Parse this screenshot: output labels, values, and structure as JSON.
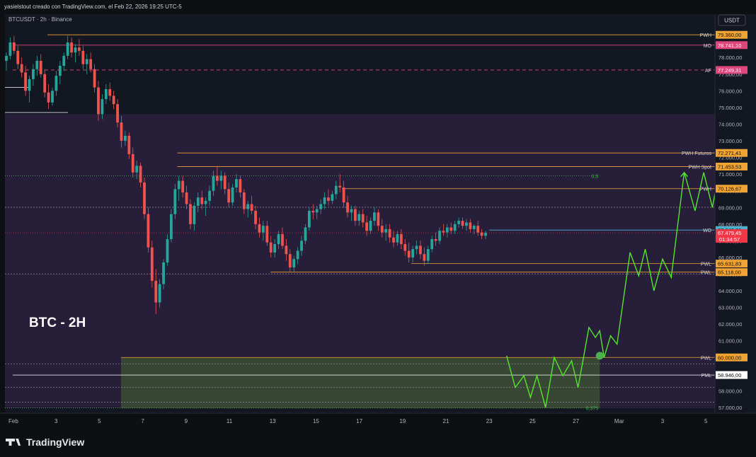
{
  "header": {
    "text": "yasielstout creado con TradingView.com, el Feb 22, 2026 19:25 UTC-5"
  },
  "footer": {
    "brand": "TradingView",
    "logo_icon": "tradingview-logo-icon"
  },
  "chart_data": {
    "type": "candlestick",
    "symbol_label": "BTCUSDT · 2h · Binance",
    "currency_button": "USDT",
    "annotation": "BTC - 2H",
    "ylim": [
      56700,
      80600
    ],
    "y_ticks": [
      {
        "value": 78000,
        "label": "78.000,00"
      },
      {
        "value": 77000,
        "label": "77.000,00"
      },
      {
        "value": 76000,
        "label": "76.000,00"
      },
      {
        "value": 75000,
        "label": "75.000,00"
      },
      {
        "value": 74000,
        "label": "74.000,00"
      },
      {
        "value": 73000,
        "label": "73.000,00"
      },
      {
        "value": 72000,
        "label": "72.000,00"
      },
      {
        "value": 71000,
        "label": "71.000,00"
      },
      {
        "value": 70000,
        "label": "70.000,00"
      },
      {
        "value": 69000,
        "label": "69.000,00"
      },
      {
        "value": 68000,
        "label": "68.000,00"
      },
      {
        "value": 67000,
        "label": "67.000,00"
      },
      {
        "value": 66000,
        "label": "66.000,00"
      },
      {
        "value": 65000,
        "label": "65.000,00"
      },
      {
        "value": 64000,
        "label": "64.000,00"
      },
      {
        "value": 63000,
        "label": "63.000,00"
      },
      {
        "value": 62000,
        "label": "62.000,00"
      },
      {
        "value": 61000,
        "label": "61.000,00"
      },
      {
        "value": 60000,
        "label": "60.000,00"
      },
      {
        "value": 59000,
        "label": "59.000,00"
      },
      {
        "value": 58000,
        "label": "58.000,00"
      },
      {
        "value": 57000,
        "label": "57.000,00"
      }
    ],
    "x_ticks": [
      {
        "day": 1,
        "label": "Feb"
      },
      {
        "day": 3,
        "label": "3"
      },
      {
        "day": 5,
        "label": "5"
      },
      {
        "day": 7,
        "label": "7"
      },
      {
        "day": 9,
        "label": "9"
      },
      {
        "day": 11,
        "label": "11"
      },
      {
        "day": 13,
        "label": "13"
      },
      {
        "day": 15,
        "label": "15"
      },
      {
        "day": 17,
        "label": "17"
      },
      {
        "day": 19,
        "label": "19"
      },
      {
        "day": 21,
        "label": "21"
      },
      {
        "day": 23,
        "label": "23"
      },
      {
        "day": 25,
        "label": "25"
      },
      {
        "day": 27,
        "label": "27"
      },
      {
        "day": 29,
        "label": "Mar"
      },
      {
        "day": 31,
        "label": "3"
      },
      {
        "day": 33,
        "label": "5"
      }
    ],
    "levels": [
      {
        "name": "PWH",
        "value": 79360,
        "label": "79.360,00",
        "color": "#f0a233",
        "style": "solid",
        "from_day": 2.6
      },
      {
        "name": "MO",
        "value": 78741.1,
        "label": "78.741,10",
        "color": "#e0457b",
        "style": "solid",
        "from_day": 1
      },
      {
        "name": "AF",
        "value": 77249.31,
        "label": "77.249,31",
        "color": "#e0457b",
        "style": "dashed",
        "from_day": 1
      },
      {
        "name": "PWH Futuros",
        "value": 72271.41,
        "label": "72.271,41",
        "color": "#f0a233",
        "style": "solid",
        "from_day": 8.6
      },
      {
        "name": "PWH Spot",
        "value": 71453.53,
        "label": "71.453,53",
        "color": "#f0a233",
        "style": "solid",
        "from_day": 8.6
      },
      {
        "name": "PWH",
        "value": 70126.67,
        "label": "70.126,67",
        "color": "#f0a233",
        "style": "solid",
        "from_day": 16.2
      },
      {
        "name": "WO",
        "value": 67643.39,
        "label": "67.643,39",
        "color": "#4fb0cc",
        "style": "solid",
        "from_day": 23
      },
      {
        "name": "PWL",
        "value": 65631.83,
        "label": "65.631,83",
        "color": "#f0a233",
        "style": "solid",
        "from_day": 19.4
      },
      {
        "name": "PWL",
        "value": 65118,
        "label": "65.118,00",
        "color": "#f0a233",
        "style": "solid",
        "from_day": 12.9
      },
      {
        "name": "PWL",
        "value": 60000,
        "label": "60.000,00",
        "color": "#f0a233",
        "style": "solid",
        "from_day": 6
      },
      {
        "name": "PML",
        "value": 58946,
        "label": "58.946,00",
        "color": "#ffffff",
        "style": "solid",
        "from_day": 1
      }
    ],
    "current_price": {
      "value": 67479.45,
      "label": "67.479,45",
      "countdown": "01:34:57",
      "color": "#f23645"
    },
    "fib_levels": [
      {
        "label": "0,5",
        "value": 70905
      },
      {
        "label": "0,375",
        "value": 56980
      }
    ],
    "dotted_levels": [
      69010,
      65010,
      59600,
      58200,
      57320
    ],
    "zones": [
      {
        "name": "range",
        "from": 56950,
        "to": 74600,
        "color": "#2a1f3d"
      },
      {
        "name": "demand",
        "from": 56950,
        "to": 60000,
        "from_day": 6,
        "to_day": 28.1,
        "color": "#3c4f34"
      }
    ],
    "projection": {
      "color": "#55e52d",
      "points": [
        [
          23.8,
          60100
        ],
        [
          24.2,
          58200
        ],
        [
          24.6,
          58900
        ],
        [
          24.9,
          57600
        ],
        [
          25.2,
          58900
        ],
        [
          25.6,
          57000
        ],
        [
          26.0,
          60000
        ],
        [
          26.4,
          58900
        ],
        [
          26.8,
          59800
        ],
        [
          27.1,
          58200
        ],
        [
          27.6,
          61800
        ],
        [
          27.9,
          61200
        ],
        [
          28.1,
          61600
        ],
        [
          28.3,
          60000
        ],
        [
          28.6,
          61300
        ],
        [
          28.9,
          60800
        ],
        [
          29.5,
          66300
        ],
        [
          29.9,
          64900
        ],
        [
          30.2,
          66500
        ],
        [
          30.6,
          64000
        ],
        [
          31.0,
          65900
        ],
        [
          31.4,
          64800
        ],
        [
          32.0,
          71100
        ],
        [
          32.5,
          68800
        ],
        [
          32.9,
          71100
        ],
        [
          33.3,
          69000
        ],
        [
          33.6,
          71100
        ],
        [
          34.0,
          67200
        ],
        [
          34.5,
          70200
        ],
        [
          34.9,
          68900
        ],
        [
          35.4,
          72200
        ]
      ],
      "marker": {
        "day": 28.1,
        "value": 60100
      }
    },
    "candles": [
      {
        "o": 77800,
        "h": 78300,
        "l": 77200,
        "c": 78100
      },
      {
        "o": 78100,
        "h": 79200,
        "l": 77900,
        "c": 78900
      },
      {
        "o": 78900,
        "h": 79300,
        "l": 78200,
        "c": 78400
      },
      {
        "o": 78400,
        "h": 78700,
        "l": 77300,
        "c": 77600
      },
      {
        "o": 77600,
        "h": 78000,
        "l": 76800,
        "c": 77100
      },
      {
        "o": 77100,
        "h": 77500,
        "l": 75700,
        "c": 76000
      },
      {
        "o": 76000,
        "h": 76900,
        "l": 75300,
        "c": 76700
      },
      {
        "o": 76700,
        "h": 77600,
        "l": 76300,
        "c": 77300
      },
      {
        "o": 77300,
        "h": 78100,
        "l": 76900,
        "c": 77800
      },
      {
        "o": 77800,
        "h": 78200,
        "l": 76800,
        "c": 77000
      },
      {
        "o": 77000,
        "h": 77300,
        "l": 75600,
        "c": 75900
      },
      {
        "o": 75900,
        "h": 76400,
        "l": 74900,
        "c": 75300
      },
      {
        "o": 75300,
        "h": 76200,
        "l": 75100,
        "c": 76000
      },
      {
        "o": 76000,
        "h": 77200,
        "l": 75700,
        "c": 76900
      },
      {
        "o": 76900,
        "h": 77800,
        "l": 76400,
        "c": 77500
      },
      {
        "o": 77500,
        "h": 78300,
        "l": 77200,
        "c": 78100
      },
      {
        "o": 78100,
        "h": 79300,
        "l": 77900,
        "c": 78900
      },
      {
        "o": 78900,
        "h": 79200,
        "l": 78000,
        "c": 78300
      },
      {
        "o": 78300,
        "h": 78800,
        "l": 77700,
        "c": 78600
      },
      {
        "o": 78600,
        "h": 79100,
        "l": 78100,
        "c": 78400
      },
      {
        "o": 78400,
        "h": 78700,
        "l": 77300,
        "c": 77600
      },
      {
        "o": 77600,
        "h": 78200,
        "l": 77000,
        "c": 77900
      },
      {
        "o": 77900,
        "h": 78300,
        "l": 77100,
        "c": 77300
      },
      {
        "o": 77300,
        "h": 77600,
        "l": 75900,
        "c": 76200
      },
      {
        "o": 76200,
        "h": 76600,
        "l": 74200,
        "c": 74600
      },
      {
        "o": 74600,
        "h": 75800,
        "l": 74300,
        "c": 75500
      },
      {
        "o": 75500,
        "h": 76400,
        "l": 75200,
        "c": 76100
      },
      {
        "o": 76100,
        "h": 76500,
        "l": 75400,
        "c": 75700
      },
      {
        "o": 75700,
        "h": 76000,
        "l": 74900,
        "c": 75200
      },
      {
        "o": 75200,
        "h": 75500,
        "l": 73800,
        "c": 74100
      },
      {
        "o": 74100,
        "h": 74500,
        "l": 72600,
        "c": 73000
      },
      {
        "o": 73000,
        "h": 73600,
        "l": 72700,
        "c": 73300
      },
      {
        "o": 73300,
        "h": 73500,
        "l": 71900,
        "c": 72200
      },
      {
        "o": 72200,
        "h": 72600,
        "l": 70800,
        "c": 71100
      },
      {
        "o": 71100,
        "h": 71800,
        "l": 70700,
        "c": 71500
      },
      {
        "o": 71500,
        "h": 71700,
        "l": 70200,
        "c": 70500
      },
      {
        "o": 70500,
        "h": 70800,
        "l": 68300,
        "c": 68600
      },
      {
        "o": 68600,
        "h": 69000,
        "l": 66300,
        "c": 66600
      },
      {
        "o": 66600,
        "h": 67000,
        "l": 64200,
        "c": 64600
      },
      {
        "o": 64600,
        "h": 65300,
        "l": 62600,
        "c": 63300
      },
      {
        "o": 63300,
        "h": 64700,
        "l": 63000,
        "c": 64400
      },
      {
        "o": 64400,
        "h": 65900,
        "l": 64100,
        "c": 65700
      },
      {
        "o": 65700,
        "h": 67400,
        "l": 65500,
        "c": 67100
      },
      {
        "o": 67100,
        "h": 68900,
        "l": 66900,
        "c": 68600
      },
      {
        "o": 68600,
        "h": 70400,
        "l": 68300,
        "c": 70100
      },
      {
        "o": 70100,
        "h": 70900,
        "l": 69400,
        "c": 70600
      },
      {
        "o": 70600,
        "h": 70900,
        "l": 69600,
        "c": 69900
      },
      {
        "o": 69900,
        "h": 70300,
        "l": 68900,
        "c": 69200
      },
      {
        "o": 69200,
        "h": 69500,
        "l": 67700,
        "c": 68000
      },
      {
        "o": 68000,
        "h": 69300,
        "l": 67600,
        "c": 69100
      },
      {
        "o": 69100,
        "h": 69900,
        "l": 68700,
        "c": 69600
      },
      {
        "o": 69600,
        "h": 70000,
        "l": 68900,
        "c": 69200
      },
      {
        "o": 69200,
        "h": 69600,
        "l": 68500,
        "c": 69400
      },
      {
        "o": 69400,
        "h": 70300,
        "l": 69100,
        "c": 70000
      },
      {
        "o": 70000,
        "h": 71200,
        "l": 69700,
        "c": 70900
      },
      {
        "o": 70900,
        "h": 71500,
        "l": 70300,
        "c": 70600
      },
      {
        "o": 70600,
        "h": 71200,
        "l": 70100,
        "c": 70900
      },
      {
        "o": 70900,
        "h": 71100,
        "l": 69800,
        "c": 70100
      },
      {
        "o": 70100,
        "h": 70500,
        "l": 69000,
        "c": 69300
      },
      {
        "o": 69300,
        "h": 70400,
        "l": 69100,
        "c": 70200
      },
      {
        "o": 70200,
        "h": 71000,
        "l": 69900,
        "c": 70700
      },
      {
        "o": 70700,
        "h": 70900,
        "l": 69600,
        "c": 69900
      },
      {
        "o": 69900,
        "h": 70100,
        "l": 68600,
        "c": 68900
      },
      {
        "o": 68900,
        "h": 69400,
        "l": 68400,
        "c": 69200
      },
      {
        "o": 69200,
        "h": 69700,
        "l": 68600,
        "c": 68800
      },
      {
        "o": 68800,
        "h": 69100,
        "l": 67700,
        "c": 68000
      },
      {
        "o": 68000,
        "h": 68400,
        "l": 67200,
        "c": 67500
      },
      {
        "o": 67500,
        "h": 68200,
        "l": 67000,
        "c": 67900
      },
      {
        "o": 67900,
        "h": 68200,
        "l": 66700,
        "c": 66900
      },
      {
        "o": 66900,
        "h": 67300,
        "l": 66000,
        "c": 66300
      },
      {
        "o": 66300,
        "h": 67100,
        "l": 66000,
        "c": 66800
      },
      {
        "o": 66800,
        "h": 67600,
        "l": 66500,
        "c": 67400
      },
      {
        "o": 67400,
        "h": 67800,
        "l": 66500,
        "c": 66700
      },
      {
        "o": 66700,
        "h": 67100,
        "l": 65800,
        "c": 66200
      },
      {
        "o": 66200,
        "h": 66500,
        "l": 65100,
        "c": 65400
      },
      {
        "o": 65400,
        "h": 66100,
        "l": 65100,
        "c": 65900
      },
      {
        "o": 65900,
        "h": 66600,
        "l": 65600,
        "c": 66400
      },
      {
        "o": 66400,
        "h": 67300,
        "l": 66100,
        "c": 67000
      },
      {
        "o": 67000,
        "h": 68000,
        "l": 66800,
        "c": 67800
      },
      {
        "o": 67800,
        "h": 69000,
        "l": 67600,
        "c": 68800
      },
      {
        "o": 68800,
        "h": 69200,
        "l": 68300,
        "c": 68700
      },
      {
        "o": 68700,
        "h": 69100,
        "l": 68300,
        "c": 68900
      },
      {
        "o": 68900,
        "h": 69500,
        "l": 68600,
        "c": 69200
      },
      {
        "o": 69200,
        "h": 69900,
        "l": 68900,
        "c": 69600
      },
      {
        "o": 69600,
        "h": 70100,
        "l": 69100,
        "c": 69400
      },
      {
        "o": 69400,
        "h": 70000,
        "l": 69200,
        "c": 69800
      },
      {
        "o": 69800,
        "h": 70600,
        "l": 69500,
        "c": 70300
      },
      {
        "o": 70300,
        "h": 71000,
        "l": 69900,
        "c": 70200
      },
      {
        "o": 70200,
        "h": 70600,
        "l": 69000,
        "c": 69300
      },
      {
        "o": 69300,
        "h": 69700,
        "l": 68400,
        "c": 68700
      },
      {
        "o": 68700,
        "h": 69100,
        "l": 68200,
        "c": 68900
      },
      {
        "o": 68900,
        "h": 69100,
        "l": 67900,
        "c": 68200
      },
      {
        "o": 68200,
        "h": 68800,
        "l": 67900,
        "c": 68600
      },
      {
        "o": 68600,
        "h": 68900,
        "l": 67800,
        "c": 68100
      },
      {
        "o": 68100,
        "h": 68500,
        "l": 67300,
        "c": 67600
      },
      {
        "o": 67600,
        "h": 68400,
        "l": 67400,
        "c": 68200
      },
      {
        "o": 68200,
        "h": 69000,
        "l": 67900,
        "c": 68700
      },
      {
        "o": 68700,
        "h": 68900,
        "l": 67600,
        "c": 67900
      },
      {
        "o": 67900,
        "h": 68300,
        "l": 67200,
        "c": 67500
      },
      {
        "o": 67500,
        "h": 68000,
        "l": 67000,
        "c": 67700
      },
      {
        "o": 67700,
        "h": 68000,
        "l": 66900,
        "c": 67200
      },
      {
        "o": 67200,
        "h": 67600,
        "l": 66600,
        "c": 66900
      },
      {
        "o": 66900,
        "h": 67600,
        "l": 66700,
        "c": 67400
      },
      {
        "o": 67400,
        "h": 67700,
        "l": 66500,
        "c": 66800
      },
      {
        "o": 66800,
        "h": 67100,
        "l": 66100,
        "c": 66400
      },
      {
        "o": 66400,
        "h": 66900,
        "l": 65700,
        "c": 66000
      },
      {
        "o": 66000,
        "h": 66700,
        "l": 65700,
        "c": 66500
      },
      {
        "o": 66500,
        "h": 67000,
        "l": 66200,
        "c": 66700
      },
      {
        "o": 66700,
        "h": 67000,
        "l": 65900,
        "c": 66200
      },
      {
        "o": 66200,
        "h": 66600,
        "l": 65500,
        "c": 65800
      },
      {
        "o": 65800,
        "h": 66700,
        "l": 65600,
        "c": 66500
      },
      {
        "o": 66500,
        "h": 67300,
        "l": 66300,
        "c": 67100
      },
      {
        "o": 67100,
        "h": 67500,
        "l": 66700,
        "c": 67000
      },
      {
        "o": 67000,
        "h": 67800,
        "l": 66800,
        "c": 67600
      },
      {
        "o": 67600,
        "h": 68000,
        "l": 67300,
        "c": 67500
      },
      {
        "o": 67500,
        "h": 68000,
        "l": 67200,
        "c": 67800
      },
      {
        "o": 67800,
        "h": 68100,
        "l": 67400,
        "c": 67600
      },
      {
        "o": 67600,
        "h": 68200,
        "l": 67400,
        "c": 68000
      },
      {
        "o": 68000,
        "h": 68400,
        "l": 67800,
        "c": 68200
      },
      {
        "o": 68200,
        "h": 68400,
        "l": 67700,
        "c": 67900
      },
      {
        "o": 67900,
        "h": 68300,
        "l": 67600,
        "c": 68100
      },
      {
        "o": 68100,
        "h": 68300,
        "l": 67500,
        "c": 67700
      },
      {
        "o": 67700,
        "h": 68000,
        "l": 67400,
        "c": 67900
      },
      {
        "o": 67900,
        "h": 68200,
        "l": 67300,
        "c": 67500
      },
      {
        "o": 67500,
        "h": 67700,
        "l": 67100,
        "c": 67300
      },
      {
        "o": 67300,
        "h": 67600,
        "l": 67100,
        "c": 67480
      }
    ]
  }
}
